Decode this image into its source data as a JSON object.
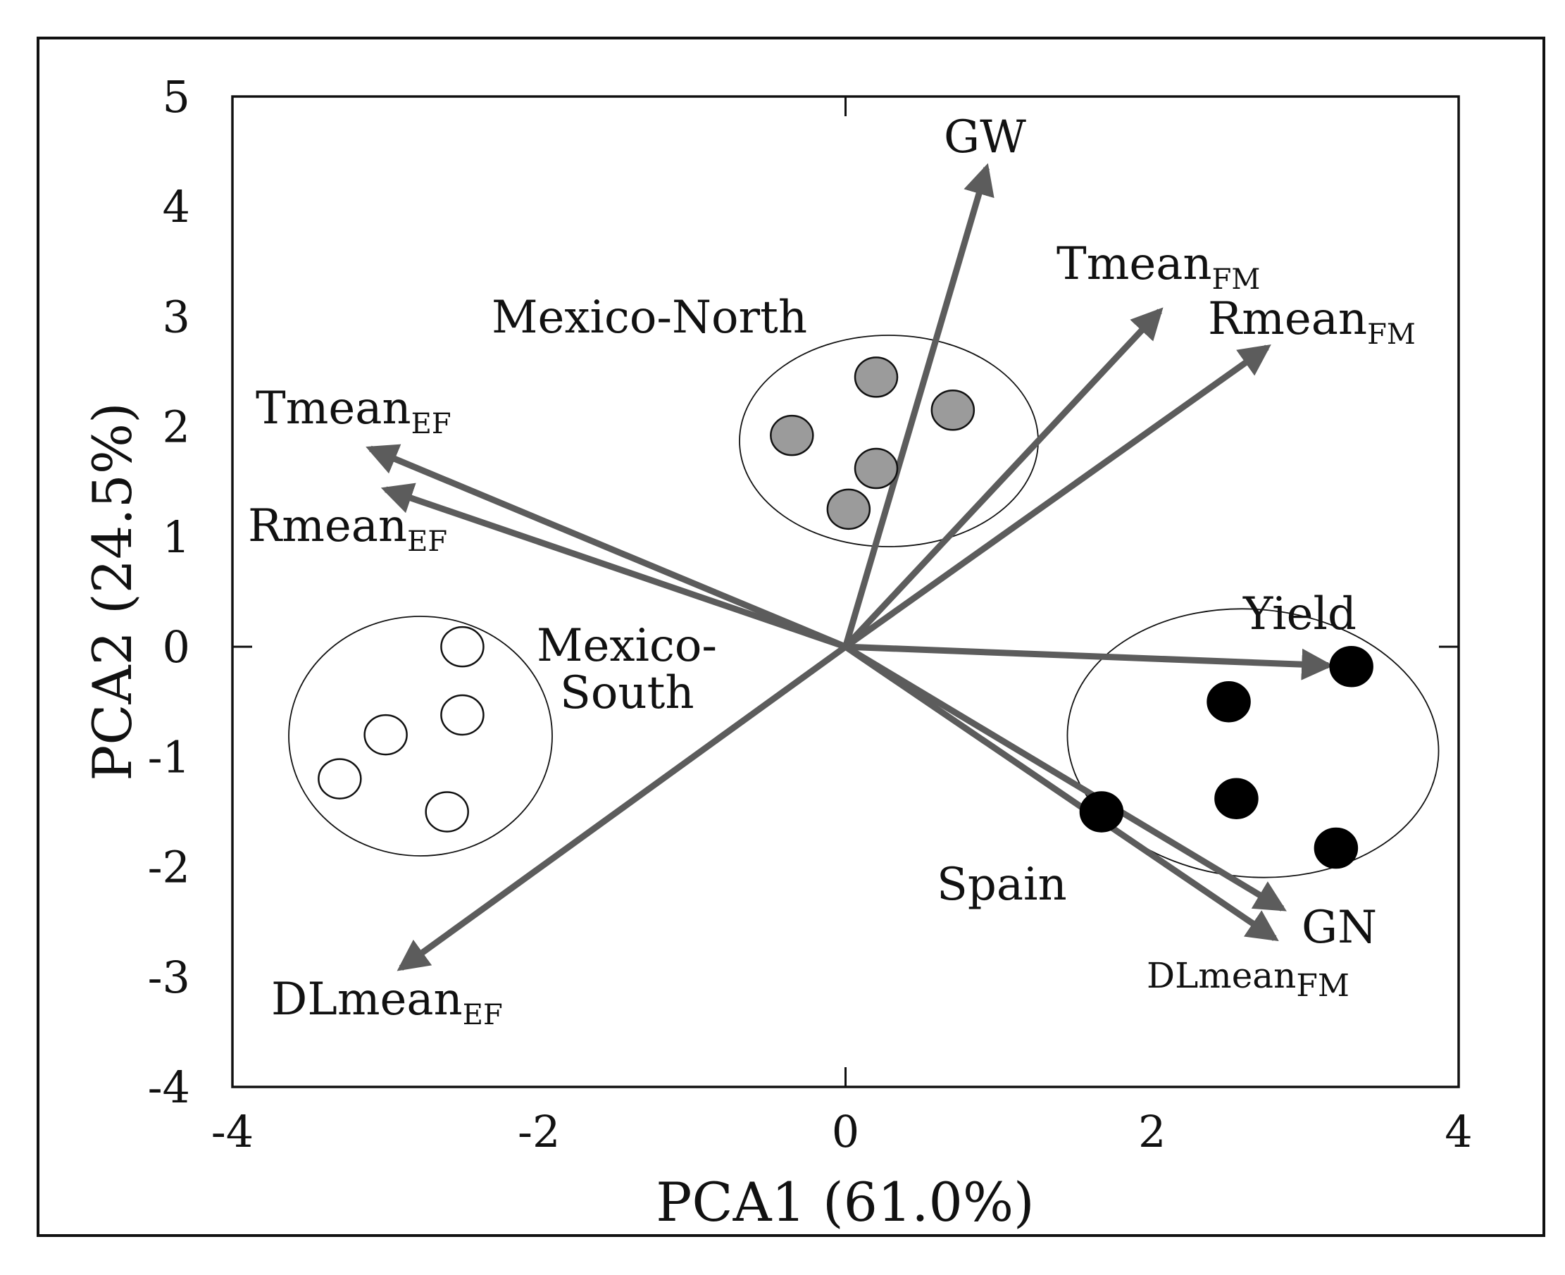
{
  "chart_data": {
    "type": "scatter",
    "title": "",
    "xlabel": "PCA1 (61.0%)",
    "ylabel": "PCA2 (24.5%)",
    "xlim": [
      -4,
      4
    ],
    "ylim": [
      -4,
      5
    ],
    "x_ticks": [
      -4,
      -2,
      0,
      2,
      4
    ],
    "y_ticks": [
      5,
      4,
      3,
      2,
      1,
      0,
      -1,
      -2,
      -3,
      -4
    ],
    "x_tick_labels": [
      "-4",
      "-2",
      "0",
      "2",
      "4"
    ],
    "y_tick_labels": [
      "5",
      "4",
      "3",
      "2",
      "1",
      "0",
      "-1",
      "-2",
      "-3",
      "-4"
    ],
    "grid": false,
    "series": [
      {
        "name": "Mexico-North",
        "marker": "filled-gray",
        "points": [
          [
            0.2,
            2.45
          ],
          [
            0.7,
            2.15
          ],
          [
            -0.35,
            1.92
          ],
          [
            0.2,
            1.62
          ],
          [
            0.02,
            1.25
          ]
        ]
      },
      {
        "name": "Mexico-South",
        "marker": "open",
        "points": [
          [
            -2.5,
            0.0
          ],
          [
            -2.5,
            -0.62
          ],
          [
            -3.0,
            -0.8
          ],
          [
            -3.3,
            -1.2
          ],
          [
            -2.6,
            -1.5
          ]
        ]
      },
      {
        "name": "Spain",
        "marker": "filled-black",
        "points": [
          [
            3.3,
            -0.18
          ],
          [
            2.5,
            -0.5
          ],
          [
            2.55,
            -1.38
          ],
          [
            3.2,
            -1.83
          ],
          [
            1.67,
            -1.5
          ]
        ]
      }
    ],
    "vectors": [
      {
        "name": "GW",
        "x": 0.92,
        "y": 4.35
      },
      {
        "name": "Tmean",
        "subscript": "FM",
        "x": 2.05,
        "y": 3.05
      },
      {
        "name": "Rmean",
        "subscript": "FM",
        "x": 2.75,
        "y": 2.72
      },
      {
        "name": "Tmean",
        "subscript": "EF",
        "x": -3.1,
        "y": 1.8
      },
      {
        "name": "Rmean",
        "subscript": "EF",
        "x": -3.0,
        "y": 1.43
      },
      {
        "name": "Yield",
        "x": 3.15,
        "y": -0.17
      },
      {
        "name": "GN",
        "x": 2.85,
        "y": -2.38
      },
      {
        "name": "DLmean",
        "subscript": "FM",
        "x": 2.8,
        "y": -2.65
      },
      {
        "name": "DLmean",
        "subscript": "EF",
        "x": -2.9,
        "y": -2.92
      }
    ],
    "group_labels": [
      {
        "text": "Mexico-North"
      },
      {
        "text": "Mexico-"
      },
      {
        "text": "South"
      },
      {
        "text": "Spain"
      }
    ]
  },
  "colors": {
    "arrow": "#5c5c5c",
    "gray_point": "#9b9b9b",
    "black_point": "#000000",
    "open_point": "#ffffff",
    "axis": "#111111"
  }
}
